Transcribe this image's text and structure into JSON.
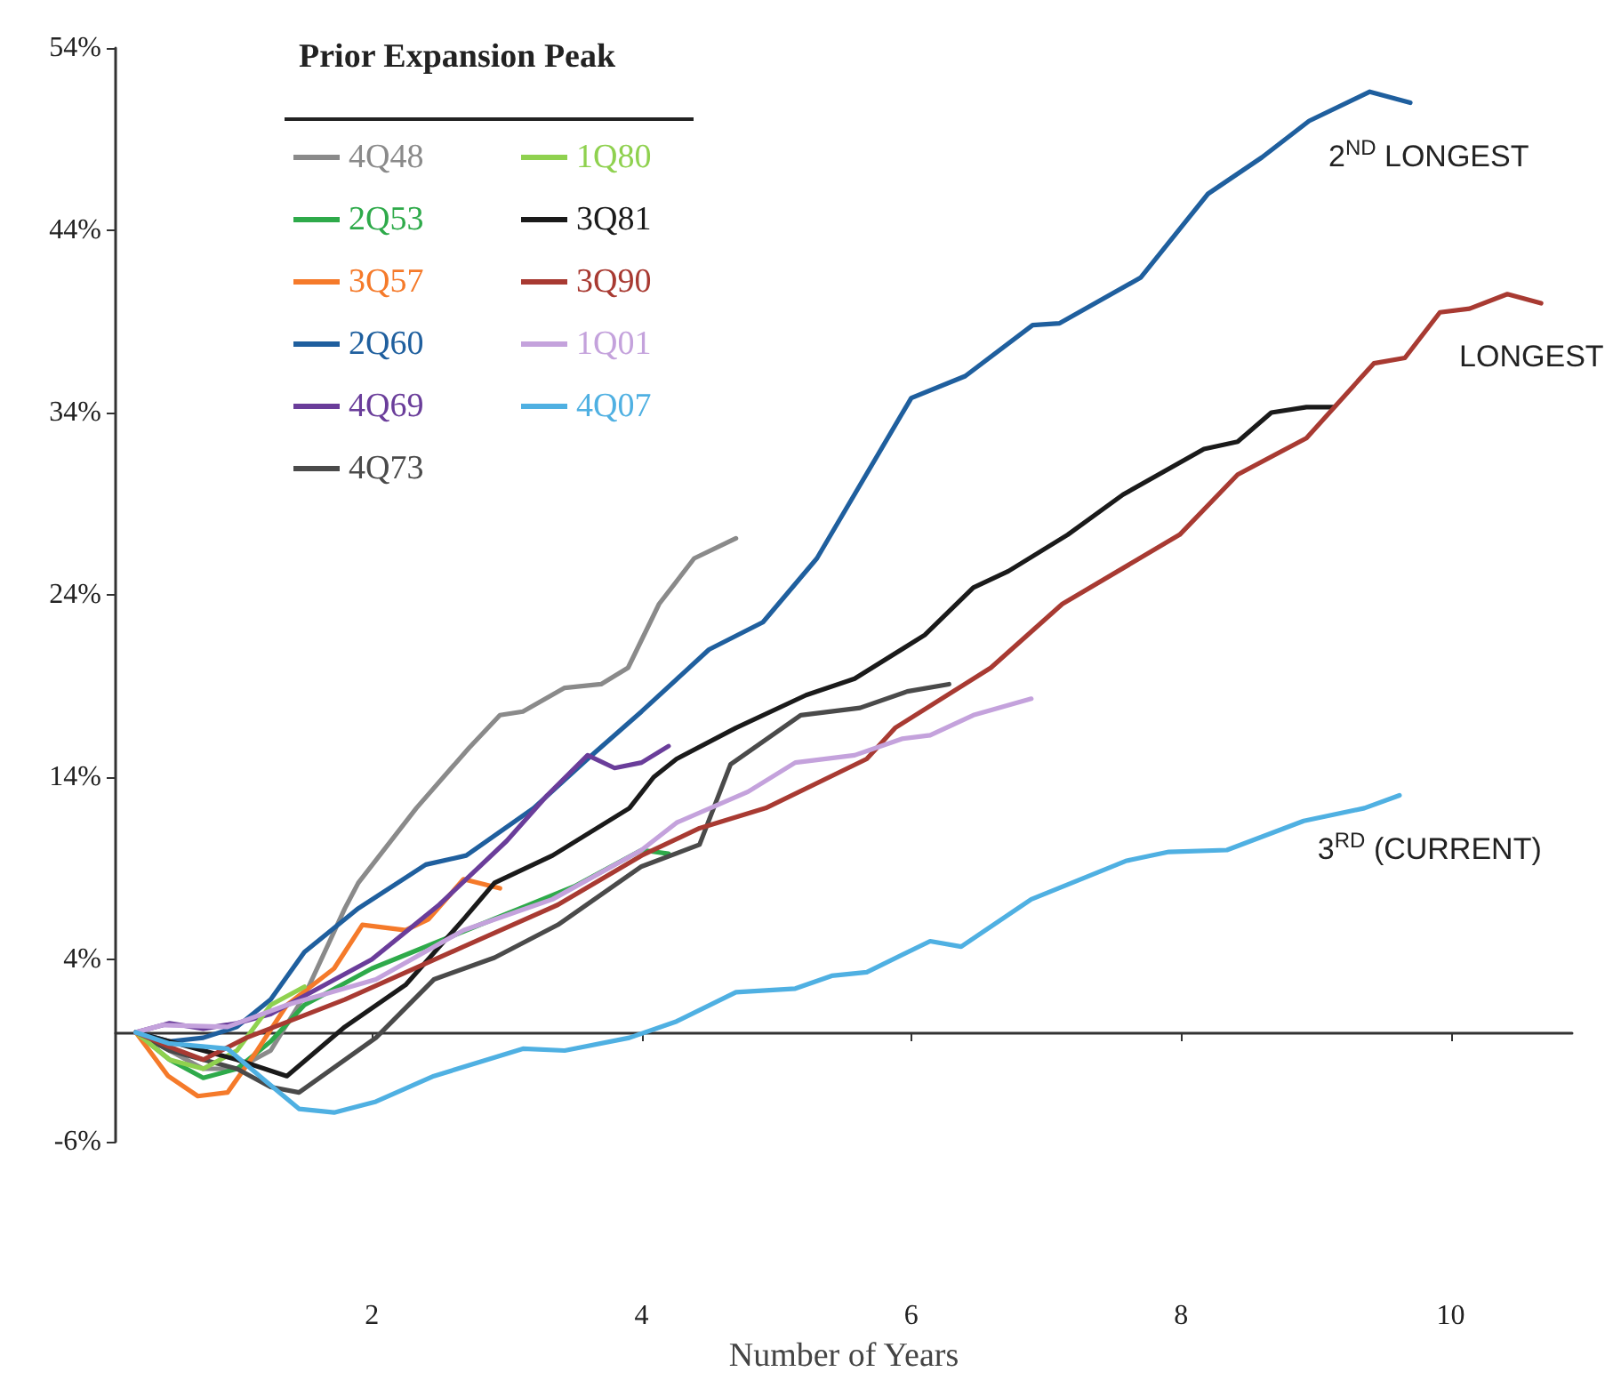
{
  "chart_data": {
    "type": "line",
    "xlabel": "Number of Years",
    "legend_title": "Prior Expansion Peak",
    "legend": "top left",
    "grid": false,
    "marker": "none",
    "line_style": "solid",
    "xlim": [
      0.1,
      10.9
    ],
    "xticks": [
      2,
      4,
      6,
      8,
      10
    ],
    "ylim": [
      -6,
      54
    ],
    "yticks": [
      {
        "value": -6,
        "label": "-6%"
      },
      {
        "value": 4,
        "label": "4%"
      },
      {
        "value": 14,
        "label": "14%"
      },
      {
        "value": 24,
        "label": "24%"
      },
      {
        "value": 34,
        "label": "34%"
      },
      {
        "value": 44,
        "label": "44%"
      },
      {
        "value": 54,
        "label": "54%"
      }
    ],
    "annotations": [
      {
        "text": "2$^{ND}$ LONGEST",
        "x": 9.7,
        "y": 51
      },
      {
        "text": "LONGEST",
        "x": 10.67,
        "y": 40
      },
      {
        "text": "3$^{RD}$ (CURRENT)",
        "x": 9.62,
        "y": 13
      }
    ],
    "series": [
      {
        "name": "4Q48",
        "color": "#8a8a8a",
        "x": [
          0.25,
          0.5,
          0.75,
          1,
          1.25,
          1.5,
          1.8,
          1.9,
          2.33,
          2.72,
          2.95,
          3.12,
          3.43,
          3.7,
          3.9,
          4.13,
          4.39,
          4.7
        ],
        "values": [
          0,
          -1,
          -2,
          -2,
          -1,
          2,
          6.8,
          8.2,
          12.3,
          15.6,
          17.4,
          17.6,
          18.9,
          19.1,
          20,
          23.5,
          26,
          27.1
        ]
      },
      {
        "name": "2Q53",
        "color": "#2eaa4a",
        "x": [
          0.25,
          0.5,
          0.75,
          1,
          1.25,
          1.5,
          2,
          2.5,
          3,
          3.5,
          4,
          4.2
        ],
        "values": [
          0,
          -1.5,
          -2.5,
          -2,
          -0.5,
          1.5,
          3.5,
          5,
          6.5,
          8,
          10,
          9.8
        ]
      },
      {
        "name": "3Q57",
        "color": "#f57a2a",
        "x": [
          0.25,
          0.49,
          0.71,
          0.93,
          1.14,
          1.37,
          1.72,
          1.93,
          2.25,
          2.42,
          2.68,
          2.95
        ],
        "values": [
          0,
          -2.4,
          -3.5,
          -3.3,
          -1.1,
          1.5,
          3.5,
          5.9,
          5.6,
          6.2,
          8.4,
          7.9
        ]
      },
      {
        "name": "2Q60",
        "color": "#1f5f9e",
        "x": [
          0.25,
          0.5,
          0.75,
          1,
          1.25,
          1.5,
          1.9,
          2.4,
          2.7,
          3.2,
          3.6,
          4,
          4.5,
          4.9,
          5.3,
          6,
          6.4,
          6.9,
          7.1,
          7.7,
          8.2,
          8.6,
          8.95,
          9.4,
          9.7
        ],
        "values": [
          0,
          -0.5,
          -0.3,
          0.3,
          1.8,
          4.4,
          6.8,
          9.2,
          9.7,
          12.3,
          15,
          17.6,
          21,
          22.5,
          26,
          34.8,
          36,
          38.8,
          38.9,
          41.4,
          46,
          48,
          50,
          51.6,
          51
        ]
      },
      {
        "name": "4Q69",
        "color": "#6a3d9a",
        "x": [
          0.25,
          0.5,
          0.75,
          1,
          1.25,
          1.5,
          2,
          2.5,
          3,
          3.3,
          3.6,
          3.8,
          4,
          4.2
        ],
        "values": [
          0,
          0.5,
          0.2,
          0.5,
          1,
          2,
          4,
          7,
          10.5,
          13,
          15.2,
          14.5,
          14.8,
          15.7
        ]
      },
      {
        "name": "4Q73",
        "color": "#4a4a4a",
        "x": [
          0.25,
          0.5,
          0.75,
          1,
          1.25,
          1.46,
          2.03,
          2.46,
          2.91,
          3.38,
          4,
          4.43,
          4.66,
          5.18,
          5.62,
          5.97,
          6.28
        ],
        "values": [
          0,
          -1,
          -1.5,
          -2,
          -3,
          -3.3,
          -0.3,
          2.9,
          4.1,
          5.9,
          9.1,
          10.3,
          14.7,
          17.4,
          17.8,
          18.7,
          19.1
        ]
      },
      {
        "name": "1Q80",
        "color": "#8fd14f",
        "x": [
          0.25,
          0.5,
          0.75,
          1,
          1.25,
          1.5
        ],
        "values": [
          0,
          -1.5,
          -2,
          -1,
          1.5,
          2.5
        ]
      },
      {
        "name": "3Q81",
        "color": "#1a1a1a",
        "x": [
          0.25,
          0.5,
          0.75,
          1,
          1.37,
          1.8,
          2.25,
          2.68,
          2.91,
          3.34,
          3.91,
          4.09,
          4.26,
          4.7,
          5.22,
          5.58,
          6.1,
          6.46,
          6.72,
          7.16,
          7.57,
          8.17,
          8.42,
          8.67,
          8.93,
          9.13
        ],
        "values": [
          0,
          -0.5,
          -1,
          -1.5,
          -2.4,
          0.3,
          2.6,
          6.2,
          8.2,
          9.7,
          12.3,
          14,
          15,
          16.7,
          18.5,
          19.4,
          21.8,
          24.4,
          25.3,
          27.3,
          29.5,
          32,
          32.4,
          34,
          34.3,
          34.3
        ]
      },
      {
        "name": "3Q90",
        "color": "#a83a32",
        "x": [
          0.25,
          0.5,
          0.75,
          1.07,
          1.8,
          2.68,
          3.38,
          4,
          4.43,
          4.92,
          5.67,
          5.88,
          6.59,
          7.12,
          7.99,
          8.42,
          8.93,
          9.43,
          9.66,
          9.92,
          10.14,
          10.42,
          10.67
        ],
        "values": [
          0,
          -0.8,
          -1.5,
          -0.3,
          1.8,
          4.7,
          7,
          9.7,
          11.2,
          12.3,
          15,
          16.7,
          20,
          23.5,
          27.3,
          30.6,
          32.6,
          36.7,
          37,
          39.5,
          39.7,
          40.5,
          40
        ]
      },
      {
        "name": "1Q01",
        "color": "#c4a2dc",
        "x": [
          0.25,
          0.45,
          0.93,
          1.37,
          2.03,
          2.68,
          3.34,
          4,
          4.26,
          4.79,
          5.14,
          5.58,
          5.93,
          6.14,
          6.46,
          6.89
        ],
        "values": [
          0,
          0.4,
          0.3,
          1.5,
          2.9,
          5.6,
          7.3,
          10,
          11.5,
          13.2,
          14.8,
          15.2,
          16.1,
          16.3,
          17.4,
          18.3
        ]
      },
      {
        "name": "4Q07",
        "color": "#4fb0e2",
        "x": [
          0.25,
          0.49,
          0.93,
          1.2,
          1.46,
          1.72,
          2.03,
          2.46,
          3.12,
          3.43,
          3.91,
          4.26,
          4.7,
          5.14,
          5.41,
          5.67,
          6.14,
          6.37,
          6.89,
          7.59,
          7.91,
          8.34,
          8.91,
          9.36,
          9.62
        ],
        "values": [
          0,
          -0.6,
          -0.9,
          -2.6,
          -4.2,
          -4.4,
          -3.8,
          -2.4,
          -0.9,
          -1,
          -0.3,
          0.6,
          2.2,
          2.4,
          3.1,
          3.3,
          5,
          4.7,
          7.3,
          9.4,
          9.9,
          10,
          11.6,
          12.3,
          13
        ]
      }
    ]
  }
}
